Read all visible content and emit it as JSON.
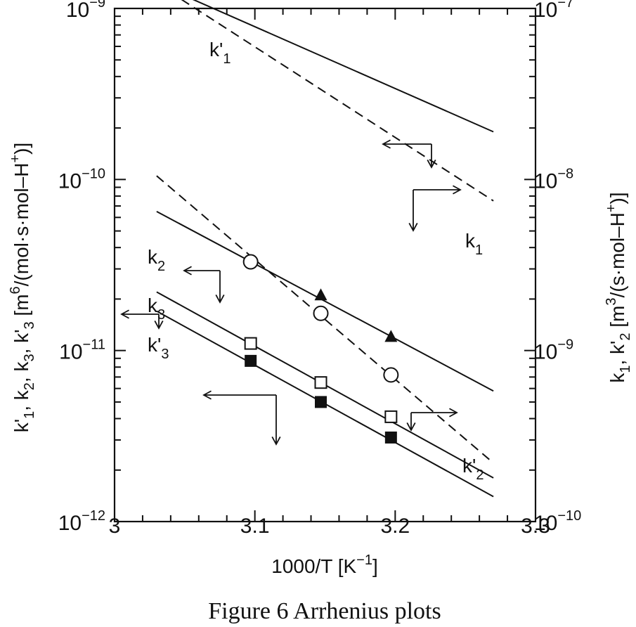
{
  "chart_data": {
    "type": "line",
    "xlabel": "1000/T [K",
    "xlabel_sup": "−1",
    "xlabel_end": "]",
    "xlim": [
      3.0,
      3.3
    ],
    "x_ticks": [
      "3",
      "3.1",
      "3.2",
      "3.3"
    ],
    "y_left": {
      "label_parts": [
        "k'",
        "1",
        ", k",
        "2",
        ", k",
        "3",
        ", k'",
        "3",
        "  [m",
        "6",
        "/(mol·s·mol–H",
        "+",
        ")]"
      ],
      "scale": "log",
      "lim": [
        1e-12,
        1e-09
      ],
      "ticks": [
        {
          "base": "10",
          "exp": "−9"
        },
        {
          "base": "10",
          "exp": "−10"
        },
        {
          "base": "10",
          "exp": "−11"
        },
        {
          "base": "10",
          "exp": "−12"
        }
      ]
    },
    "y_right": {
      "label_parts": [
        "k",
        "1",
        ", k'",
        "2",
        "  [m",
        "3",
        "/(s·mol–H",
        "+",
        ")]"
      ],
      "scale": "log",
      "lim": [
        1e-10,
        1e-07
      ],
      "ticks": [
        {
          "base": "10",
          "exp": "−7"
        },
        {
          "base": "10",
          "exp": "−8"
        },
        {
          "base": "10",
          "exp": "−9"
        },
        {
          "base": "10",
          "exp": "−10"
        }
      ]
    },
    "series": [
      {
        "name": "k'1",
        "axis": "left",
        "line": "solid",
        "x": [
          3.03,
          3.27
        ],
        "y": [
          1.4e-09,
          1.9e-10
        ]
      },
      {
        "name": "k1",
        "axis": "right",
        "line": "dashed",
        "x": [
          3.03,
          3.27
        ],
        "y": [
          1.4e-07,
          7.5e-09
        ]
      },
      {
        "name": "k2",
        "axis": "left",
        "line": "solid",
        "x": [
          3.03,
          3.27
        ],
        "y": [
          6.5e-11,
          5.8e-12
        ],
        "points": {
          "marker": "triangle-filled",
          "x": [
            3.147,
            3.197
          ],
          "y": [
            2.1e-11,
            1.2e-11
          ]
        }
      },
      {
        "name": "k'2",
        "axis": "right",
        "line": "dashed",
        "x": [
          3.03,
          3.27
        ],
        "y": [
          1.05e-08,
          2.2e-10
        ],
        "points": {
          "marker": "circle-open",
          "x": [
            3.097,
            3.147,
            3.197
          ],
          "y": [
            3.3e-09,
            1.65e-09,
            7.2e-10
          ]
        }
      },
      {
        "name": "k3",
        "axis": "left",
        "line": "solid",
        "x": [
          3.03,
          3.27
        ],
        "y": [
          2.2e-11,
          1.8e-12
        ],
        "points": {
          "marker": "square-open",
          "x": [
            3.097,
            3.147,
            3.197
          ],
          "y": [
            1.1e-11,
            6.5e-12,
            4.1e-12
          ]
        }
      },
      {
        "name": "k'3",
        "axis": "left",
        "line": "solid",
        "x": [
          3.03,
          3.27
        ],
        "y": [
          1.7e-11,
          1.4e-12
        ],
        "points": {
          "marker": "square-filled",
          "x": [
            3.097,
            3.147,
            3.197
          ],
          "y": [
            8.7e-12,
            5e-12,
            3.1e-12
          ]
        }
      }
    ],
    "series_labels": [
      {
        "base": "k'",
        "sub": "1"
      },
      {
        "base": "k",
        "sub": "1"
      },
      {
        "base": "k",
        "sub": "2"
      },
      {
        "base": "k'",
        "sub": "2"
      },
      {
        "base": "k",
        "sub": "3"
      },
      {
        "base": "k'",
        "sub": "3"
      }
    ],
    "grid": false,
    "legend": "none",
    "caption": "Figure 6   Arrhenius plots"
  }
}
